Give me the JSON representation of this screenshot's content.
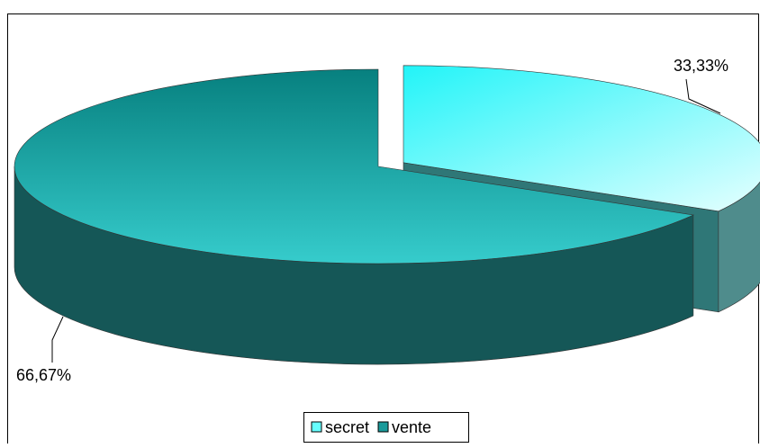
{
  "chart_data": {
    "type": "pie3d",
    "categories": [
      "secret",
      "vente"
    ],
    "values": [
      33.33,
      66.67
    ],
    "value_labels": [
      "33,33%",
      "66,67%"
    ],
    "colors": [
      "#66ffff",
      "#1a9a9a"
    ],
    "legend": "bottom"
  }
}
